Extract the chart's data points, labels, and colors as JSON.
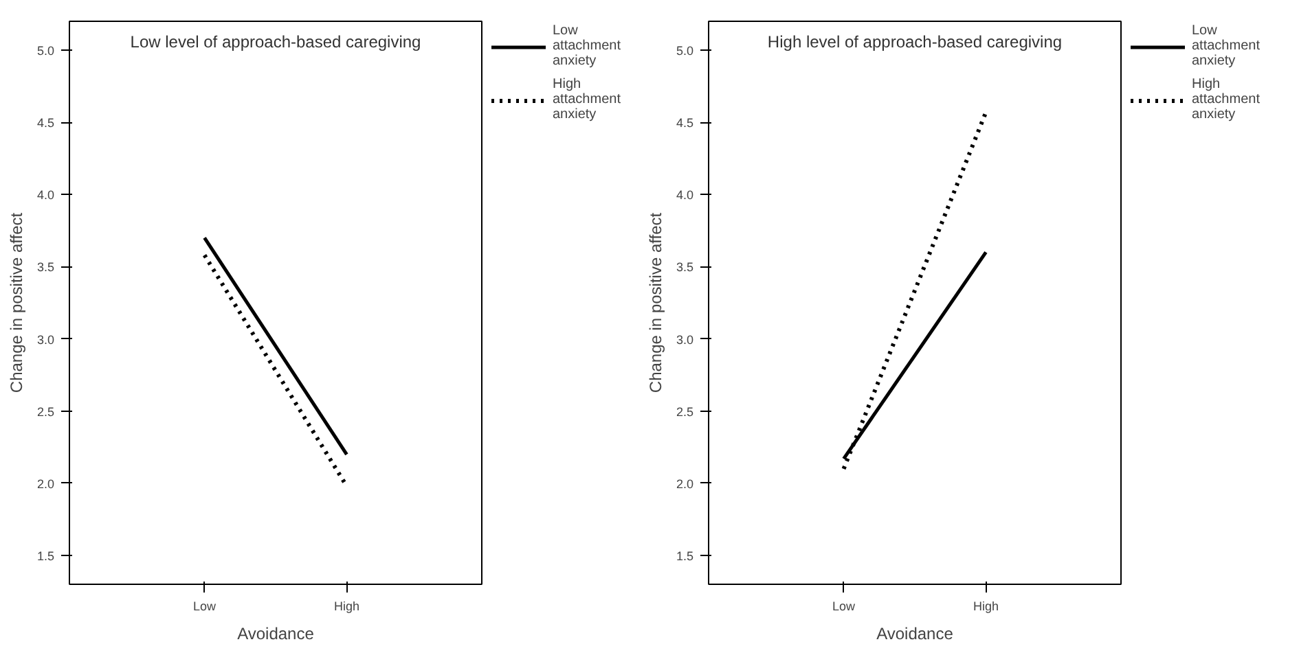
{
  "chart_data": [
    {
      "type": "line",
      "title": "Low level of approach-based caregiving",
      "xlabel": "Avoidance",
      "ylabel": "Change in positive affect",
      "categories": [
        "Low",
        "High"
      ],
      "ylim": [
        1.3,
        5.2
      ],
      "yticks": [
        {
          "value": 1.5,
          "label": "1.5"
        },
        {
          "value": 2.0,
          "label": "2.0"
        },
        {
          "value": 2.5,
          "label": "2.5"
        },
        {
          "value": 3.0,
          "label": "3.0"
        },
        {
          "value": 3.5,
          "label": "3.5"
        },
        {
          "value": 4.0,
          "label": "4.0"
        },
        {
          "value": 4.5,
          "label": "4.5"
        },
        {
          "value": 5.0,
          "label": "5.0"
        }
      ],
      "grid": false,
      "legend": "top right",
      "marker": "none",
      "series": [
        {
          "name": "Low attachment anxiety",
          "color": "#000000",
          "line_style": "solid",
          "values": [
            3.7,
            2.2
          ]
        },
        {
          "name": "High attachment anxiety",
          "color": "#000000",
          "line_style": "dotted",
          "values": [
            3.58,
            1.98
          ]
        }
      ]
    },
    {
      "type": "line",
      "title": "High level of approach-based caregiving",
      "xlabel": "Avoidance",
      "ylabel": "Change in positive affect",
      "categories": [
        "Low",
        "High"
      ],
      "ylim": [
        1.3,
        5.2
      ],
      "yticks": [
        {
          "value": 1.5,
          "label": "1.5"
        },
        {
          "value": 2.0,
          "label": "2.0"
        },
        {
          "value": 2.5,
          "label": "2.5"
        },
        {
          "value": 3.0,
          "label": "3.0"
        },
        {
          "value": 3.5,
          "label": "3.5"
        },
        {
          "value": 4.0,
          "label": "4.0"
        },
        {
          "value": 4.5,
          "label": "4.5"
        },
        {
          "value": 5.0,
          "label": "5.0"
        }
      ],
      "grid": false,
      "legend": "top right",
      "marker": "none",
      "series": [
        {
          "name": "Low attachment anxiety",
          "color": "#000000",
          "line_style": "solid",
          "values": [
            2.17,
            3.6
          ]
        },
        {
          "name": "High attachment anxiety",
          "color": "#000000",
          "line_style": "dotted",
          "values": [
            2.1,
            4.57
          ]
        }
      ]
    }
  ]
}
